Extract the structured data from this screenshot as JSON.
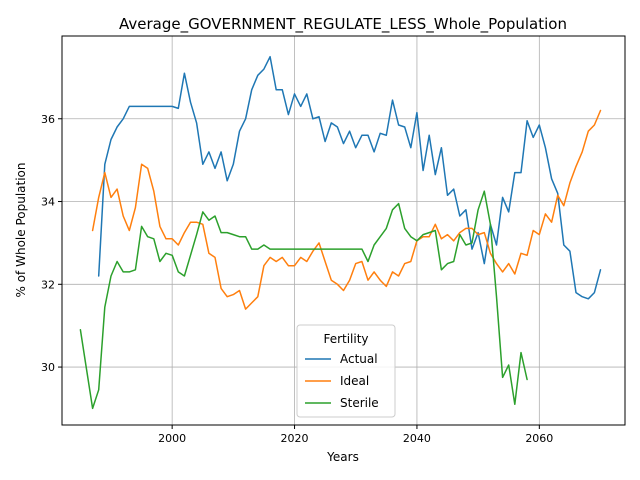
{
  "chart_data": {
    "type": "line",
    "title": "Average_GOVERNMENT_REGULATE_LESS_Whole_Population",
    "xlabel": "Years",
    "ylabel": "% of Whole Population",
    "xlim": [
      1982,
      2074
    ],
    "ylim": [
      28.6,
      38.0
    ],
    "xticks": [
      2000,
      2020,
      2040,
      2060
    ],
    "yticks": [
      30,
      32,
      34,
      36
    ],
    "grid": true,
    "legend": {
      "title": "Fertility",
      "placement": "lower-center"
    },
    "series": [
      {
        "name": "Actual",
        "color": "#1f77b4",
        "x": [
          1988,
          1989,
          1990,
          1991,
          1992,
          1993,
          1994,
          1995,
          1996,
          1997,
          1998,
          1999,
          2000,
          2001,
          2002,
          2003,
          2004,
          2005,
          2006,
          2007,
          2008,
          2009,
          2010,
          2011,
          2012,
          2013,
          2014,
          2015,
          2016,
          2017,
          2018,
          2019,
          2020,
          2021,
          2022,
          2023,
          2024,
          2025,
          2026,
          2027,
          2028,
          2029,
          2030,
          2031,
          2032,
          2033,
          2034,
          2035,
          2036,
          2037,
          2038,
          2039,
          2040,
          2041,
          2042,
          2043,
          2044,
          2045,
          2046,
          2047,
          2048,
          2049,
          2050,
          2051,
          2052,
          2053,
          2054,
          2055,
          2056,
          2057,
          2058,
          2059,
          2060,
          2061,
          2062,
          2063,
          2064,
          2065,
          2066,
          2067,
          2068,
          2069,
          2070
        ],
        "y": [
          32.2,
          34.9,
          35.5,
          35.8,
          36.0,
          36.3,
          36.3,
          36.3,
          36.3,
          36.3,
          36.3,
          36.3,
          36.3,
          36.25,
          37.1,
          36.4,
          35.9,
          34.9,
          35.2,
          34.8,
          35.2,
          34.5,
          34.9,
          35.7,
          36.0,
          36.7,
          37.05,
          37.2,
          37.5,
          36.7,
          36.7,
          36.1,
          36.6,
          36.3,
          36.6,
          36.0,
          36.05,
          35.45,
          35.9,
          35.8,
          35.4,
          35.7,
          35.3,
          35.6,
          35.6,
          35.2,
          35.65,
          35.6,
          36.45,
          35.85,
          35.8,
          35.3,
          36.15,
          34.75,
          35.6,
          34.65,
          35.3,
          34.15,
          34.3,
          33.65,
          33.8,
          32.85,
          33.25,
          32.5,
          33.45,
          32.95,
          34.1,
          33.75,
          34.7,
          34.7,
          35.95,
          35.55,
          35.85,
          35.3,
          34.55,
          34.2,
          32.95,
          32.8,
          31.8,
          31.7,
          31.65,
          31.8,
          32.35
        ]
      },
      {
        "name": "Ideal",
        "color": "#ff7f0e",
        "x": [
          1987,
          1988,
          1989,
          1990,
          1991,
          1992,
          1993,
          1994,
          1995,
          1996,
          1997,
          1998,
          1999,
          2000,
          2001,
          2002,
          2003,
          2004,
          2005,
          2006,
          2007,
          2008,
          2009,
          2010,
          2011,
          2012,
          2013,
          2014,
          2015,
          2016,
          2017,
          2018,
          2019,
          2020,
          2021,
          2022,
          2023,
          2024,
          2025,
          2026,
          2027,
          2028,
          2029,
          2030,
          2031,
          2032,
          2033,
          2034,
          2035,
          2036,
          2037,
          2038,
          2039,
          2040,
          2041,
          2042,
          2043,
          2044,
          2045,
          2046,
          2047,
          2048,
          2049,
          2050,
          2051,
          2052,
          2053,
          2054,
          2055,
          2056,
          2057,
          2058,
          2059,
          2060,
          2061,
          2062,
          2063,
          2064,
          2065,
          2066,
          2067,
          2068,
          2069,
          2070
        ],
        "y": [
          33.3,
          34.1,
          34.7,
          34.1,
          34.3,
          33.65,
          33.3,
          33.85,
          34.9,
          34.8,
          34.25,
          33.4,
          33.1,
          33.1,
          32.95,
          33.25,
          33.5,
          33.5,
          33.45,
          32.75,
          32.65,
          31.9,
          31.7,
          31.75,
          31.85,
          31.4,
          31.55,
          31.7,
          32.45,
          32.65,
          32.55,
          32.65,
          32.45,
          32.45,
          32.65,
          32.55,
          32.8,
          33.0,
          32.55,
          32.1,
          32.0,
          31.85,
          32.1,
          32.5,
          32.55,
          32.1,
          32.3,
          32.1,
          31.95,
          32.3,
          32.2,
          32.5,
          32.55,
          33.05,
          33.15,
          33.15,
          33.45,
          33.1,
          33.2,
          33.05,
          33.25,
          33.35,
          33.35,
          33.2,
          33.25,
          32.75,
          32.5,
          32.3,
          32.5,
          32.25,
          32.75,
          32.7,
          33.3,
          33.2,
          33.7,
          33.5,
          34.15,
          33.9,
          34.45,
          34.85,
          35.2,
          35.7,
          35.85,
          36.2
        ]
      },
      {
        "name": "Sterile",
        "color": "#2ca02c",
        "x": [
          1985,
          1986,
          1987,
          1988,
          1989,
          1990,
          1991,
          1992,
          1993,
          1994,
          1995,
          1996,
          1997,
          1998,
          1999,
          2000,
          2001,
          2002,
          2003,
          2004,
          2005,
          2006,
          2007,
          2008,
          2009,
          2010,
          2011,
          2012,
          2013,
          2014,
          2015,
          2016,
          2017,
          2018,
          2019,
          2020,
          2021,
          2022,
          2023,
          2024,
          2025,
          2026,
          2027,
          2028,
          2029,
          2030,
          2031,
          2032,
          2033,
          2034,
          2035,
          2036,
          2037,
          2038,
          2039,
          2040,
          2041,
          2042,
          2043,
          2044,
          2045,
          2046,
          2047,
          2048,
          2049,
          2050,
          2051,
          2052,
          2053,
          2054,
          2055,
          2056,
          2057,
          2058
        ],
        "y": [
          30.9,
          29.95,
          29.0,
          29.45,
          31.45,
          32.2,
          32.55,
          32.3,
          32.3,
          32.35,
          33.4,
          33.15,
          33.1,
          32.55,
          32.75,
          32.7,
          32.3,
          32.2,
          32.7,
          33.2,
          33.75,
          33.55,
          33.65,
          33.25,
          33.25,
          33.2,
          33.15,
          33.15,
          32.85,
          32.85,
          32.95,
          32.85,
          32.85,
          32.85,
          32.85,
          32.85,
          32.85,
          32.85,
          32.85,
          32.85,
          32.85,
          32.85,
          32.85,
          32.85,
          32.85,
          32.85,
          32.85,
          32.55,
          32.95,
          33.15,
          33.35,
          33.8,
          33.95,
          33.35,
          33.15,
          33.05,
          33.2,
          33.25,
          33.3,
          32.35,
          32.5,
          32.55,
          33.2,
          32.95,
          33.0,
          33.8,
          34.25,
          33.45,
          31.7,
          29.75,
          30.05,
          29.1,
          30.35,
          29.7
        ]
      }
    ]
  }
}
